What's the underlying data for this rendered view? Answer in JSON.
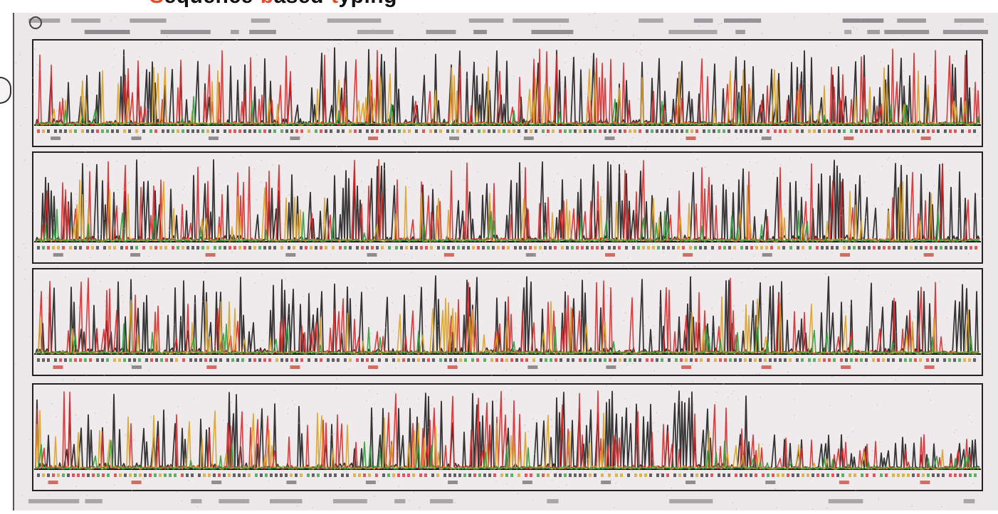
{
  "slide": {
    "title_words": [
      {
        "initial": "S",
        "rest": "equence"
      },
      {
        "initial": "b",
        "rest": "ased"
      },
      {
        "initial": "t",
        "rest": "yping"
      }
    ],
    "title_colors": {
      "initial": "#e34b2a",
      "rest": "#111111"
    }
  },
  "chromatogram": {
    "panel_count": 4,
    "trace_colors": {
      "A": "#2f9b3a",
      "C": "#202020",
      "G": "#d8a12a",
      "T": "#d42a2a"
    },
    "panel_border_color": "#222222",
    "background_color": "#ece8ea"
  }
}
